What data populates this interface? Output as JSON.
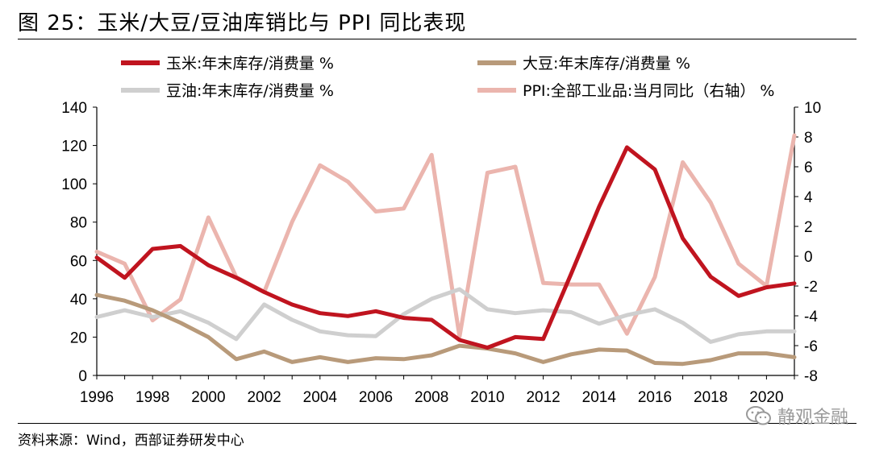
{
  "header": {
    "title": "图 25：玉米/大豆/豆油库销比与 PPI 同比表现"
  },
  "footer": {
    "source": "资料来源：Wind，西部证券研发中心",
    "watermark": "静观金融"
  },
  "colors": {
    "corn": "#c0141f",
    "soy": "#b89a7a",
    "soyoil": "#cfcfcf",
    "ppi": "#ebb5ae"
  },
  "chart_data": {
    "type": "line",
    "x": [
      1996,
      1997,
      1998,
      1999,
      2000,
      2001,
      2002,
      2003,
      2004,
      2005,
      2006,
      2007,
      2008,
      2009,
      2010,
      2011,
      2012,
      2013,
      2014,
      2015,
      2016,
      2017,
      2018,
      2019,
      2020,
      2021
    ],
    "x_ticks": [
      "1996",
      "1998",
      "2000",
      "2002",
      "2004",
      "2006",
      "2008",
      "2010",
      "2012",
      "2014",
      "2016",
      "2018",
      "2020"
    ],
    "y_left": {
      "ylim": [
        0,
        140
      ],
      "ticks": [
        "0",
        "20",
        "40",
        "60",
        "80",
        "100",
        "120",
        "140"
      ]
    },
    "y_right": {
      "ylim": [
        -8,
        10
      ],
      "ticks": [
        "-8",
        "-6",
        "-4",
        "-2",
        "0",
        "2",
        "4",
        "6",
        "8",
        "10"
      ]
    },
    "series": [
      {
        "name": "玉米:年末库存/消费量 %",
        "axis": "left",
        "color": "#c0141f",
        "values": [
          61.5,
          51,
          66,
          67.5,
          57.5,
          51,
          43.5,
          37,
          32.5,
          31,
          33.5,
          30,
          29,
          18.5,
          14.5,
          20,
          19,
          53,
          88,
          119,
          107.5,
          71.5,
          51.5,
          41.5,
          46,
          48
        ]
      },
      {
        "name": "大豆:年末库存/消费量 %",
        "axis": "left",
        "color": "#b89a7a",
        "values": [
          42,
          39,
          34,
          27.5,
          20,
          8.5,
          12.5,
          7,
          9.5,
          7,
          9,
          8.5,
          10.5,
          15.5,
          14,
          11.5,
          7,
          11,
          13.5,
          13,
          6.5,
          6,
          8,
          11.5,
          11.5,
          9.5
        ]
      },
      {
        "name": "豆油:年末库存/消费量 %",
        "axis": "left",
        "color": "#cfcfcf",
        "values": [
          30.5,
          34,
          30.5,
          33.5,
          27.5,
          19,
          37,
          29,
          23,
          21,
          20.5,
          32,
          40,
          45,
          34.5,
          32.5,
          34,
          33,
          27,
          31.5,
          34.5,
          27.5,
          17.5,
          21.5,
          23,
          23
        ]
      },
      {
        "name": "PPI:全部工业品:当月同比（右轴） %",
        "axis": "right",
        "color": "#ebb5ae",
        "values": [
          0.3,
          -0.5,
          -4.3,
          -2.9,
          2.6,
          -1.4,
          -2.4,
          2.3,
          6.1,
          5,
          3,
          3.2,
          6.8,
          -5.4,
          5.6,
          6,
          -1.8,
          -1.9,
          -1.9,
          -5.2,
          -1.4,
          6.3,
          3.6,
          -0.5,
          -2,
          8.1
        ]
      }
    ],
    "legend": "top"
  }
}
